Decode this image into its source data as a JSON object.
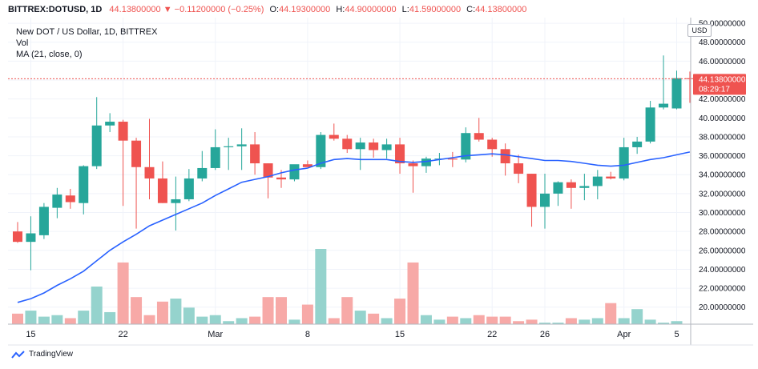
{
  "header": {
    "symbol": "BITTREX:DOTUSD, 1D",
    "last": "44.13800000",
    "change": "−0.11200000 (−0.25%)",
    "o_label": "O:",
    "o": "44.19300000",
    "h_label": "H:",
    "h": "44.90000000",
    "l_label": "L:",
    "l": "41.59000000",
    "c_label": "C:",
    "c": "44.13800000"
  },
  "legend": {
    "title": "New DOT / US Dollar, 1D, BITTREX",
    "vol": "Vol",
    "ma": "MA (21, close, 0)"
  },
  "currency": "USD",
  "price_tag": {
    "price": "44.13800000",
    "countdown": "08:29:17"
  },
  "brand": "TradingView",
  "colors": {
    "up": "#26a69a",
    "down": "#ef5350",
    "ma": "#2962ff",
    "up_vol": "#95d3cd",
    "down_vol": "#f7a9a7"
  },
  "chart_data": {
    "type": "candlestick",
    "ylim": [
      18.2,
      50.6
    ],
    "y_ticks": [
      20,
      22,
      24,
      26,
      28,
      30,
      32,
      34,
      36,
      38,
      40,
      42,
      44,
      46,
      48,
      50
    ],
    "y_tick_labels": [
      "20.00000000",
      "22.00000000",
      "24.00000000",
      "26.00000000",
      "28.00000000",
      "30.00000000",
      "32.00000000",
      "34.00000000",
      "36.00000000",
      "38.00000000",
      "40.00000000",
      "42.00000000",
      "44.00000000",
      "46.00000000",
      "48.00000000",
      "50.00000000"
    ],
    "x_tick_labels": [
      {
        "index": 1,
        "label": "15"
      },
      {
        "index": 8,
        "label": "22"
      },
      {
        "index": 15,
        "label": "Mar"
      },
      {
        "index": 22,
        "label": "8"
      },
      {
        "index": 29,
        "label": "15"
      },
      {
        "index": 36,
        "label": "22"
      },
      {
        "index": 40,
        "label": "26"
      },
      {
        "index": 46,
        "label": "Apr"
      },
      {
        "index": 50,
        "label": "5"
      }
    ],
    "candles": [
      {
        "o": 28.0,
        "h": 29.0,
        "l": 26.8,
        "c": 26.9
      },
      {
        "o": 26.9,
        "h": 29.6,
        "l": 23.9,
        "c": 27.8
      },
      {
        "o": 27.6,
        "h": 31.0,
        "l": 27.2,
        "c": 30.6
      },
      {
        "o": 30.5,
        "h": 32.6,
        "l": 29.4,
        "c": 31.9
      },
      {
        "o": 31.8,
        "h": 32.5,
        "l": 30.4,
        "c": 31.1
      },
      {
        "o": 31.0,
        "h": 35.0,
        "l": 29.8,
        "c": 34.9
      },
      {
        "o": 34.9,
        "h": 42.2,
        "l": 34.6,
        "c": 39.2
      },
      {
        "o": 39.2,
        "h": 40.5,
        "l": 38.5,
        "c": 39.6
      },
      {
        "o": 39.6,
        "h": 39.8,
        "l": 30.7,
        "c": 37.6
      },
      {
        "o": 37.6,
        "h": 37.9,
        "l": 28.3,
        "c": 34.8
      },
      {
        "o": 34.8,
        "h": 39.9,
        "l": 31.4,
        "c": 33.6
      },
      {
        "o": 33.6,
        "h": 35.4,
        "l": 31.0,
        "c": 31.0
      },
      {
        "o": 31.0,
        "h": 33.8,
        "l": 28.1,
        "c": 31.4
      },
      {
        "o": 31.4,
        "h": 34.6,
        "l": 31.2,
        "c": 33.6
      },
      {
        "o": 33.6,
        "h": 36.5,
        "l": 33.3,
        "c": 34.7
      },
      {
        "o": 34.7,
        "h": 38.8,
        "l": 34.5,
        "c": 36.9
      },
      {
        "o": 36.9,
        "h": 37.9,
        "l": 34.5,
        "c": 37.0
      },
      {
        "o": 37.0,
        "h": 38.9,
        "l": 34.5,
        "c": 37.2
      },
      {
        "o": 37.2,
        "h": 38.5,
        "l": 34.0,
        "c": 35.2
      },
      {
        "o": 35.2,
        "h": 35.2,
        "l": 31.5,
        "c": 33.7
      },
      {
        "o": 33.7,
        "h": 34.5,
        "l": 32.6,
        "c": 33.5
      },
      {
        "o": 33.5,
        "h": 35.0,
        "l": 33.3,
        "c": 35.1
      },
      {
        "o": 35.1,
        "h": 35.5,
        "l": 34.8,
        "c": 34.8
      },
      {
        "o": 34.8,
        "h": 38.5,
        "l": 34.6,
        "c": 38.2
      },
      {
        "o": 38.2,
        "h": 39.4,
        "l": 37.6,
        "c": 37.8
      },
      {
        "o": 37.8,
        "h": 38.2,
        "l": 36.3,
        "c": 36.7
      },
      {
        "o": 36.7,
        "h": 37.9,
        "l": 34.5,
        "c": 37.4
      },
      {
        "o": 37.4,
        "h": 37.8,
        "l": 35.8,
        "c": 36.6
      },
      {
        "o": 36.6,
        "h": 37.8,
        "l": 35.7,
        "c": 37.2
      },
      {
        "o": 37.2,
        "h": 37.9,
        "l": 34.1,
        "c": 35.2
      },
      {
        "o": 35.2,
        "h": 35.5,
        "l": 32.1,
        "c": 34.9
      },
      {
        "o": 34.9,
        "h": 35.9,
        "l": 34.2,
        "c": 35.7
      },
      {
        "o": 35.7,
        "h": 36.3,
        "l": 35.0,
        "c": 35.7
      },
      {
        "o": 35.7,
        "h": 36.4,
        "l": 34.8,
        "c": 35.6
      },
      {
        "o": 35.6,
        "h": 39.0,
        "l": 35.3,
        "c": 38.4
      },
      {
        "o": 38.4,
        "h": 40.0,
        "l": 37.5,
        "c": 37.7
      },
      {
        "o": 37.7,
        "h": 37.9,
        "l": 35.9,
        "c": 36.7
      },
      {
        "o": 36.7,
        "h": 37.3,
        "l": 33.9,
        "c": 35.2
      },
      {
        "o": 35.2,
        "h": 36.1,
        "l": 33.1,
        "c": 34.1
      },
      {
        "o": 34.1,
        "h": 34.1,
        "l": 28.5,
        "c": 30.6
      },
      {
        "o": 30.6,
        "h": 34.1,
        "l": 28.3,
        "c": 32.0
      },
      {
        "o": 32.0,
        "h": 33.3,
        "l": 30.7,
        "c": 33.2
      },
      {
        "o": 33.2,
        "h": 33.5,
        "l": 30.4,
        "c": 32.6
      },
      {
        "o": 32.6,
        "h": 34.1,
        "l": 31.3,
        "c": 32.8
      },
      {
        "o": 32.8,
        "h": 34.5,
        "l": 31.4,
        "c": 33.8
      },
      {
        "o": 33.8,
        "h": 34.3,
        "l": 33.5,
        "c": 33.6
      },
      {
        "o": 33.6,
        "h": 37.9,
        "l": 33.4,
        "c": 36.9
      },
      {
        "o": 36.9,
        "h": 38.0,
        "l": 36.2,
        "c": 37.5
      },
      {
        "o": 37.5,
        "h": 41.8,
        "l": 37.3,
        "c": 41.1
      },
      {
        "o": 41.1,
        "h": 46.6,
        "l": 40.9,
        "c": 41.5
      },
      {
        "o": 41.0,
        "h": 45.0,
        "l": 40.9,
        "c": 44.2
      },
      {
        "o": 44.19,
        "h": 44.9,
        "l": 41.59,
        "c": 44.138
      }
    ],
    "ma": [
      20.5,
      20.9,
      21.5,
      22.3,
      23.0,
      23.8,
      24.9,
      26.0,
      26.9,
      27.7,
      28.6,
      29.2,
      29.8,
      30.4,
      31.0,
      31.8,
      32.5,
      33.2,
      33.5,
      33.8,
      34.2,
      34.5,
      34.7,
      35.2,
      35.6,
      35.7,
      35.6,
      35.6,
      35.6,
      35.4,
      35.3,
      35.4,
      35.6,
      35.8,
      36.0,
      36.1,
      36.2,
      36.1,
      35.9,
      35.7,
      35.5,
      35.5,
      35.4,
      35.2,
      35.0,
      34.9,
      35.0,
      35.3,
      35.6,
      35.8,
      36.1,
      36.4
    ],
    "volume": [
      7,
      9,
      5,
      6,
      4,
      9,
      25,
      8,
      41,
      18,
      6,
      15,
      17,
      11,
      5,
      6,
      2,
      4,
      5,
      18,
      18,
      3,
      13,
      50,
      4,
      18,
      9,
      7,
      4,
      17,
      41,
      6,
      3,
      5,
      4,
      6,
      5,
      5,
      2,
      3,
      1,
      1,
      4,
      3,
      4,
      14,
      4,
      10,
      3,
      1,
      2,
      0
    ]
  }
}
